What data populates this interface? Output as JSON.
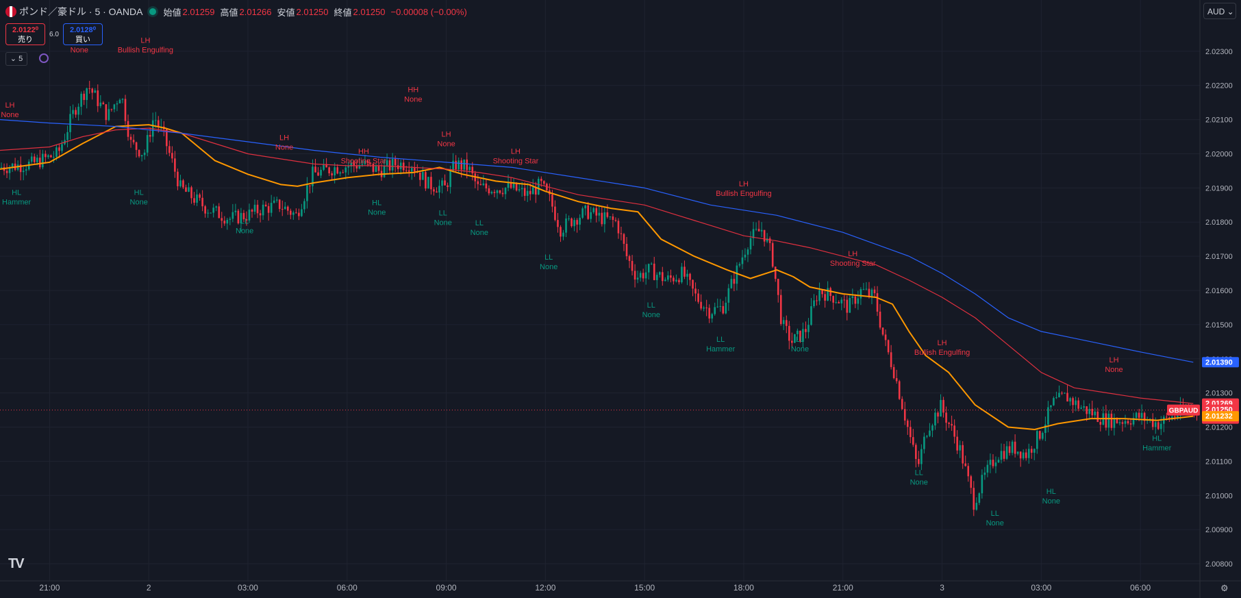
{
  "header": {
    "symbol": "ポンド／豪ドル · 5 · OANDA",
    "open_label": "始値",
    "open": "2.01259",
    "high_label": "高値",
    "high": "2.01266",
    "low_label": "安値",
    "low": "2.01250",
    "close_label": "終値",
    "close": "2.01250",
    "change": "−0.00008 (−0.00%)"
  },
  "trade": {
    "sell_price": "2.0122⁰",
    "sell_label": "売り",
    "spread": "6.0",
    "buy_price": "2.0128⁰",
    "buy_label": "買い"
  },
  "interval": "5",
  "currency": "AUD",
  "colors": {
    "up": "#089981",
    "down": "#f23645",
    "ma_fast": "#ff9800",
    "ma_mid": "#e0303f",
    "ma_slow": "#2962ff",
    "grid": "#1f2330",
    "label_bear": "#f23645",
    "label_bull": "#089981"
  },
  "chart_data": {
    "type": "candlestick",
    "title": "ポンド／豪ドル · 5 · OANDA",
    "ylim": [
      2.0075,
      2.0245
    ],
    "y_ticks": [
      "2.00800",
      "2.00900",
      "2.01000",
      "2.01100",
      "2.01200",
      "2.01300",
      "2.01400",
      "2.01500",
      "2.01600",
      "2.01700",
      "2.01800",
      "2.01900",
      "2.02000",
      "2.02100",
      "2.02200",
      "2.02300"
    ],
    "y_ticks_values": [
      2.008,
      2.009,
      2.01,
      2.011,
      2.012,
      2.013,
      2.014,
      2.015,
      2.016,
      2.017,
      2.018,
      2.019,
      2.02,
      2.021,
      2.022,
      2.023
    ],
    "x_range_hours": [
      -1.5,
      34.8
    ],
    "x_ticks": [
      {
        "label": "21:00",
        "h": 0
      },
      {
        "label": "2",
        "h": 3
      },
      {
        "label": "03:00",
        "h": 6
      },
      {
        "label": "06:00",
        "h": 9
      },
      {
        "label": "09:00",
        "h": 12
      },
      {
        "label": "12:00",
        "h": 15
      },
      {
        "label": "15:00",
        "h": 18
      },
      {
        "label": "18:00",
        "h": 21
      },
      {
        "label": "21:00",
        "h": 24
      },
      {
        "label": "3",
        "h": 27
      },
      {
        "label": "03:00",
        "h": 30
      },
      {
        "label": "06:00",
        "h": 33
      }
    ],
    "price_path": [
      [
        -1.5,
        2.0196
      ],
      [
        -0.5,
        2.0197
      ],
      [
        0.3,
        2.02
      ],
      [
        0.8,
        2.0213
      ],
      [
        1.2,
        2.022
      ],
      [
        1.8,
        2.0211
      ],
      [
        2.2,
        2.0218
      ],
      [
        2.5,
        2.0203
      ],
      [
        2.9,
        2.02
      ],
      [
        3.2,
        2.0211
      ],
      [
        3.5,
        2.0205
      ],
      [
        4.0,
        2.019
      ],
      [
        4.8,
        2.0184
      ],
      [
        5.5,
        2.0181
      ],
      [
        6.0,
        2.0182
      ],
      [
        6.5,
        2.0184
      ],
      [
        7.0,
        2.0185
      ],
      [
        7.5,
        2.0182
      ],
      [
        8.0,
        2.0194
      ],
      [
        8.7,
        2.0196
      ],
      [
        9.5,
        2.0197
      ],
      [
        10.0,
        2.0195
      ],
      [
        10.5,
        2.0197
      ],
      [
        11.0,
        2.0197
      ],
      [
        11.5,
        2.0191
      ],
      [
        12.0,
        2.019
      ],
      [
        12.3,
        2.0197
      ],
      [
        12.7,
        2.0196
      ],
      [
        13.0,
        2.019
      ],
      [
        13.5,
        2.019
      ],
      [
        14.0,
        2.019
      ],
      [
        14.5,
        2.0188
      ],
      [
        14.9,
        2.0191
      ],
      [
        15.2,
        2.0186
      ],
      [
        15.5,
        2.0178
      ],
      [
        15.9,
        2.0181
      ],
      [
        16.3,
        2.0183
      ],
      [
        16.8,
        2.0181
      ],
      [
        17.2,
        2.018
      ],
      [
        17.5,
        2.017
      ],
      [
        17.8,
        2.0164
      ],
      [
        18.2,
        2.0166
      ],
      [
        18.7,
        2.0163
      ],
      [
        19.2,
        2.0165
      ],
      [
        19.6,
        2.0158
      ],
      [
        20.0,
        2.0154
      ],
      [
        20.4,
        2.0155
      ],
      [
        20.8,
        2.0165
      ],
      [
        21.2,
        2.0175
      ],
      [
        21.6,
        2.0178
      ],
      [
        21.9,
        2.017
      ],
      [
        22.2,
        2.015
      ],
      [
        22.5,
        2.0145
      ],
      [
        22.9,
        2.0148
      ],
      [
        23.3,
        2.016
      ],
      [
        23.8,
        2.0158
      ],
      [
        24.2,
        2.0155
      ],
      [
        24.6,
        2.016
      ],
      [
        25.0,
        2.0158
      ],
      [
        25.3,
        2.0145
      ],
      [
        25.6,
        2.0136
      ],
      [
        26.0,
        2.012
      ],
      [
        26.3,
        2.0108
      ],
      [
        26.6,
        2.012
      ],
      [
        27.0,
        2.0126
      ],
      [
        27.3,
        2.012
      ],
      [
        27.6,
        2.0113
      ],
      [
        28.0,
        2.0098
      ],
      [
        28.3,
        2.0105
      ],
      [
        28.7,
        2.0112
      ],
      [
        29.2,
        2.0114
      ],
      [
        29.6,
        2.0112
      ],
      [
        30.0,
        2.0118
      ],
      [
        30.4,
        2.0127
      ],
      [
        30.8,
        2.0129
      ],
      [
        31.2,
        2.0126
      ],
      [
        31.6,
        2.0124
      ],
      [
        32.0,
        2.0122
      ],
      [
        32.5,
        2.0122
      ],
      [
        33.0,
        2.0123
      ],
      [
        33.6,
        2.0121
      ],
      [
        34.0,
        2.0123
      ],
      [
        34.6,
        2.0126
      ]
    ],
    "series": [
      {
        "name": "",
        "color": "#ff9800",
        "width": 2,
        "values": [
          [
            -1.5,
            2.01955
          ],
          [
            0,
            2.01975
          ],
          [
            1,
            2.0203
          ],
          [
            2,
            2.0208
          ],
          [
            3,
            2.02085
          ],
          [
            3.5,
            2.02075
          ],
          [
            4,
            2.0206
          ],
          [
            5,
            2.0198
          ],
          [
            6,
            2.0194
          ],
          [
            7,
            2.0191
          ],
          [
            7.5,
            2.01905
          ],
          [
            8,
            2.01915
          ],
          [
            9,
            2.0193
          ],
          [
            10,
            2.0194
          ],
          [
            11,
            2.01945
          ],
          [
            11.8,
            2.0196
          ],
          [
            12.5,
            2.0194
          ],
          [
            13.5,
            2.0192
          ],
          [
            14.5,
            2.0191
          ],
          [
            15,
            2.0189
          ],
          [
            16,
            2.0186
          ],
          [
            17,
            2.0184
          ],
          [
            17.8,
            2.0183
          ],
          [
            18.5,
            2.0175
          ],
          [
            19.5,
            2.017
          ],
          [
            20.5,
            2.0166
          ],
          [
            21.2,
            2.01635
          ],
          [
            22,
            2.0166
          ],
          [
            22.5,
            2.0164
          ],
          [
            23,
            2.0161
          ],
          [
            24,
            2.0159
          ],
          [
            25,
            2.0158
          ],
          [
            25.5,
            2.0156
          ],
          [
            26,
            2.0148
          ],
          [
            26.5,
            2.0141
          ],
          [
            27.2,
            2.0136
          ],
          [
            28,
            2.01265
          ],
          [
            29,
            2.012
          ],
          [
            29.8,
            2.01193
          ],
          [
            30.5,
            2.0121
          ],
          [
            31.5,
            2.01225
          ],
          [
            32.5,
            2.01225
          ],
          [
            33.5,
            2.0122
          ],
          [
            34.6,
            2.01232
          ]
        ]
      },
      {
        "name": "",
        "color": "#e0303f",
        "width": 1.2,
        "values": [
          [
            -1.5,
            2.0201
          ],
          [
            0,
            2.0202
          ],
          [
            1,
            2.0205
          ],
          [
            2,
            2.0207
          ],
          [
            3,
            2.02075
          ],
          [
            4,
            2.0206
          ],
          [
            5,
            2.0203
          ],
          [
            6,
            2.02
          ],
          [
            7,
            2.01985
          ],
          [
            8,
            2.0197
          ],
          [
            9,
            2.01965
          ],
          [
            10,
            2.01965
          ],
          [
            11,
            2.0196
          ],
          [
            12,
            2.01955
          ],
          [
            13,
            2.01945
          ],
          [
            14,
            2.0193
          ],
          [
            15,
            2.01905
          ],
          [
            16,
            2.0188
          ],
          [
            17,
            2.01865
          ],
          [
            18,
            2.0185
          ],
          [
            19,
            2.0182
          ],
          [
            20,
            2.0179
          ],
          [
            21,
            2.0176
          ],
          [
            22,
            2.01745
          ],
          [
            23,
            2.01725
          ],
          [
            24,
            2.017
          ],
          [
            25,
            2.01675
          ],
          [
            26,
            2.0163
          ],
          [
            27,
            2.0158
          ],
          [
            28,
            2.0152
          ],
          [
            29,
            2.0144
          ],
          [
            30,
            2.0136
          ],
          [
            31,
            2.01315
          ],
          [
            32,
            2.013
          ],
          [
            33,
            2.01285
          ],
          [
            34.6,
            2.01269
          ]
        ]
      },
      {
        "name": "",
        "color": "#2962ff",
        "width": 1.2,
        "values": [
          [
            -1.5,
            2.021
          ],
          [
            0,
            2.0209
          ],
          [
            2,
            2.0208
          ],
          [
            4,
            2.0206
          ],
          [
            6,
            2.02035
          ],
          [
            8,
            2.0201
          ],
          [
            10,
            2.0199
          ],
          [
            12,
            2.01975
          ],
          [
            14,
            2.0196
          ],
          [
            16,
            2.0193
          ],
          [
            18,
            2.019
          ],
          [
            20,
            2.0185
          ],
          [
            22,
            2.0182
          ],
          [
            24,
            2.0177
          ],
          [
            26,
            2.017
          ],
          [
            27,
            2.0165
          ],
          [
            28,
            2.0159
          ],
          [
            29,
            2.0152
          ],
          [
            30,
            2.0148
          ],
          [
            31,
            2.0146
          ],
          [
            32,
            2.0144
          ],
          [
            33,
            2.0142
          ],
          [
            34.6,
            2.0139
          ]
        ]
      }
    ],
    "annotations": [
      {
        "h": -1.2,
        "p": 2.02135,
        "kind": "bear",
        "t1": "LH",
        "t2": "None"
      },
      {
        "h": -1.0,
        "p": 2.0188,
        "kind": "bull",
        "t1": "HL",
        "t2": "Hammer"
      },
      {
        "h": 0.9,
        "p": 2.02325,
        "kind": "bear",
        "t1": "",
        "t2": "None"
      },
      {
        "h": 2.9,
        "p": 2.02325,
        "kind": "bear",
        "t1": "LH",
        "t2": "Bullish Engulfing"
      },
      {
        "h": 2.7,
        "p": 2.0188,
        "kind": "bull",
        "t1": "HL",
        "t2": "None"
      },
      {
        "h": 5.9,
        "p": 2.01795,
        "kind": "bull",
        "t1": "LL",
        "t2": "None"
      },
      {
        "h": 7.1,
        "p": 2.0204,
        "kind": "bear",
        "t1": "LH",
        "t2": "None"
      },
      {
        "h": 9.5,
        "p": 2.02,
        "kind": "bear",
        "t1": "HH",
        "t2": "Shooting Star"
      },
      {
        "h": 9.9,
        "p": 2.0185,
        "kind": "bull",
        "t1": "HL",
        "t2": "None"
      },
      {
        "h": 11.0,
        "p": 2.0218,
        "kind": "bear",
        "t1": "HH",
        "t2": "None"
      },
      {
        "h": 12.0,
        "p": 2.0205,
        "kind": "bear",
        "t1": "LH",
        "t2": "None"
      },
      {
        "h": 11.9,
        "p": 2.0182,
        "kind": "bull",
        "t1": "LL",
        "t2": "None"
      },
      {
        "h": 13.0,
        "p": 2.0179,
        "kind": "bull",
        "t1": "LL",
        "t2": "None"
      },
      {
        "h": 14.1,
        "p": 2.02,
        "kind": "bear",
        "t1": "LH",
        "t2": "Shooting Star"
      },
      {
        "h": 15.1,
        "p": 2.0169,
        "kind": "bull",
        "t1": "LL",
        "t2": "None"
      },
      {
        "h": 18.2,
        "p": 2.0155,
        "kind": "bull",
        "t1": "LL",
        "t2": "None"
      },
      {
        "h": 21.0,
        "p": 2.01905,
        "kind": "bear",
        "t1": "LH",
        "t2": "Bullish Engulfing"
      },
      {
        "h": 20.3,
        "p": 2.0145,
        "kind": "bull",
        "t1": "LL",
        "t2": "Hammer"
      },
      {
        "h": 22.7,
        "p": 2.0145,
        "kind": "bull",
        "t1": "LL",
        "t2": "None"
      },
      {
        "h": 24.3,
        "p": 2.017,
        "kind": "bear",
        "t1": "LH",
        "t2": "Shooting Star"
      },
      {
        "h": 27.0,
        "p": 2.0144,
        "kind": "bear",
        "t1": "LH",
        "t2": "Bullish Engulfing"
      },
      {
        "h": 26.3,
        "p": 2.0106,
        "kind": "bull",
        "t1": "LL",
        "t2": "None"
      },
      {
        "h": 28.6,
        "p": 2.0094,
        "kind": "bull",
        "t1": "LL",
        "t2": "None"
      },
      {
        "h": 30.3,
        "p": 2.01005,
        "kind": "bull",
        "t1": "HL",
        "t2": "None"
      },
      {
        "h": 32.2,
        "p": 2.0139,
        "kind": "bear",
        "t1": "LH",
        "t2": "None"
      },
      {
        "h": 33.5,
        "p": 2.0116,
        "kind": "bull",
        "t1": "HL",
        "t2": "Hammer"
      }
    ],
    "price_labels": [
      {
        "p": 2.0139,
        "text": "2.01390",
        "color": "#2962ff"
      },
      {
        "p": 2.01269,
        "text": "2.01269",
        "color": "#f23645"
      },
      {
        "p": 2.0125,
        "text": "2.01250",
        "color": "#f23645",
        "sub": "03:48"
      },
      {
        "p": 2.01232,
        "text": "2.01232",
        "color": "#ff9800"
      }
    ],
    "symbol_tag": "GBPAUD",
    "current_price": 2.0125
  }
}
